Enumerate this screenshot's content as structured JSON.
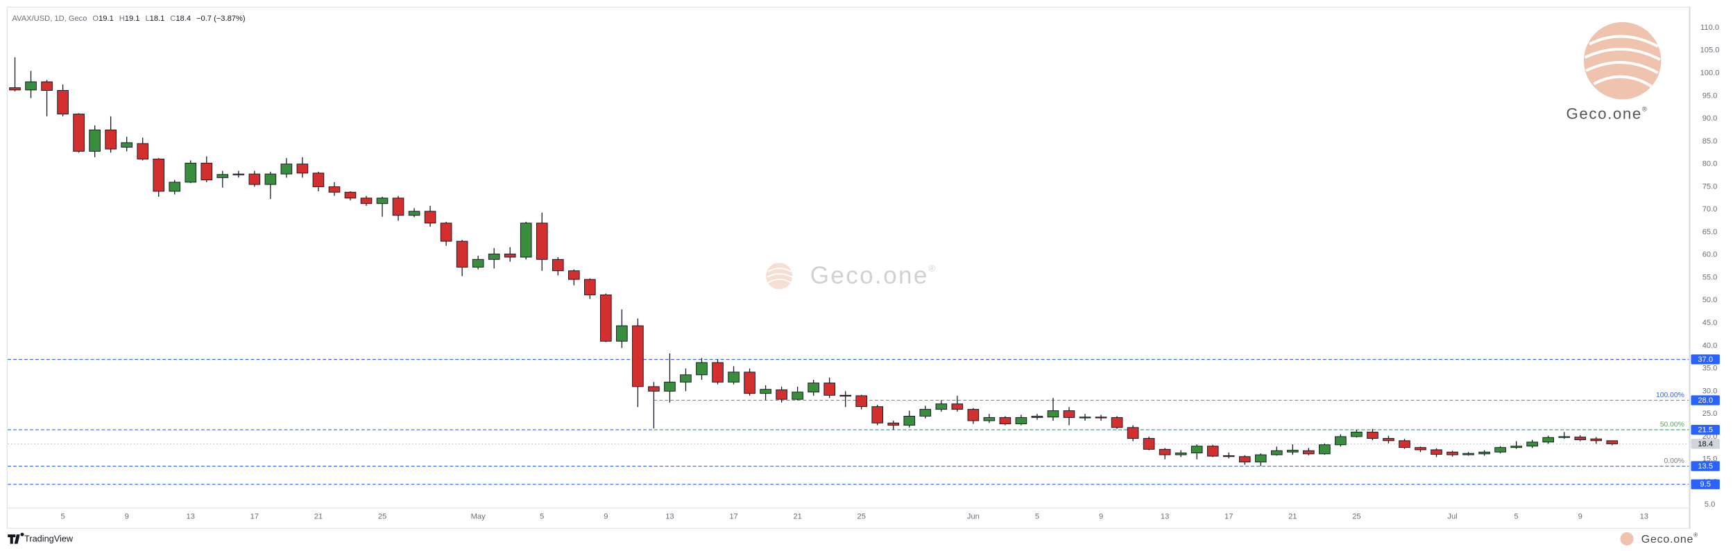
{
  "chart_data": {
    "type": "candlestick",
    "symbol": "AVAX/USD, 1D, Geco",
    "ohlc_labels": [
      "O",
      "H",
      "L",
      "C"
    ],
    "change_text": "−0.7 (−3.87%)",
    "up_color": "#388e3c",
    "down_color": "#d32f2f",
    "grid": false,
    "xlim": [
      -0.45,
      104.8
    ],
    "ylim": [
      4.3,
      114.4
    ],
    "yticks": [
      {
        "value": 5,
        "label": "5.0"
      },
      {
        "value": 10,
        "label": "10.0"
      },
      {
        "value": 15,
        "label": "15.0"
      },
      {
        "value": 20,
        "label": "20.0"
      },
      {
        "value": 25,
        "label": "25.0"
      },
      {
        "value": 30,
        "label": "30.0"
      },
      {
        "value": 35,
        "label": "35.0"
      },
      {
        "value": 40,
        "label": "40.0"
      },
      {
        "value": 45,
        "label": "45.0"
      },
      {
        "value": 50,
        "label": "50.0"
      },
      {
        "value": 55,
        "label": "55.0"
      },
      {
        "value": 60,
        "label": "60.0"
      },
      {
        "value": 65,
        "label": "65.0"
      },
      {
        "value": 70,
        "label": "70.0"
      },
      {
        "value": 75,
        "label": "75.0"
      },
      {
        "value": 80,
        "label": "80.0"
      },
      {
        "value": 85,
        "label": "85.0"
      },
      {
        "value": 90,
        "label": "90.0"
      },
      {
        "value": 95,
        "label": "95.0"
      },
      {
        "value": 100,
        "label": "100.0"
      },
      {
        "value": 105,
        "label": "105.0"
      },
      {
        "value": 110,
        "label": "110.0"
      }
    ],
    "xticks": [
      {
        "value": 3,
        "label": "5"
      },
      {
        "value": 7,
        "label": "9"
      },
      {
        "value": 11,
        "label": "13"
      },
      {
        "value": 15,
        "label": "17"
      },
      {
        "value": 19,
        "label": "21"
      },
      {
        "value": 23,
        "label": "25"
      },
      {
        "value": 29,
        "label": "May"
      },
      {
        "value": 33,
        "label": "5"
      },
      {
        "value": 37,
        "label": "9"
      },
      {
        "value": 41,
        "label": "13"
      },
      {
        "value": 45,
        "label": "17"
      },
      {
        "value": 49,
        "label": "21"
      },
      {
        "value": 53,
        "label": "25"
      },
      {
        "value": 60,
        "label": "Jun"
      },
      {
        "value": 64,
        "label": "5"
      },
      {
        "value": 68,
        "label": "9"
      },
      {
        "value": 72,
        "label": "13"
      },
      {
        "value": 76,
        "label": "17"
      },
      {
        "value": 80,
        "label": "21"
      },
      {
        "value": 84,
        "label": "25"
      },
      {
        "value": 90,
        "label": "Jul"
      },
      {
        "value": 94,
        "label": "5"
      },
      {
        "value": 98,
        "label": "9"
      },
      {
        "value": 102,
        "label": "13"
      }
    ],
    "open": [
      96.8,
      96.3,
      98.1,
      96.2,
      91,
      82.8,
      87.5,
      83.7,
      84.5,
      81.1,
      74,
      76,
      80.2,
      77,
      77.7,
      77.8,
      75.5,
      77.8,
      80,
      78,
      75,
      73.8,
      72.5,
      71.3,
      72.5,
      68.7,
      69.6,
      67,
      63,
      57.3,
      59,
      60.2,
      59.5,
      67,
      59,
      56.5,
      54.6,
      51.2,
      41,
      44.4,
      31,
      30,
      32,
      33.6,
      36.3,
      32,
      34.2,
      29.5,
      30.3,
      28.2,
      29.8,
      31.8,
      29.1,
      29,
      26.6,
      23,
      22.5,
      24.5,
      26,
      27.2,
      26,
      23.5,
      24.2,
      22.8,
      24.2,
      24.3,
      25.7,
      24.2,
      24.3,
      24.2,
      22,
      19.6,
      17.2,
      16,
      16.4,
      17.9,
      15.8,
      15.6,
      14.4,
      16,
      16.6,
      16.9,
      16.2,
      18.2,
      20,
      21,
      19.6,
      19.1,
      17.6,
      17.1,
      16.6,
      16,
      16.2,
      16.6,
      17.6,
      17.9,
      18.8,
      19.8,
      19.9,
      19.5,
      19.1
    ],
    "high": [
      103.5,
      100.5,
      98.5,
      97.5,
      91.2,
      88.5,
      90.5,
      86,
      85.8,
      81.3,
      76.5,
      80.8,
      81.7,
      78.5,
      78.5,
      78.5,
      78.3,
      81.3,
      81.5,
      78.3,
      76,
      74,
      73,
      72.8,
      73,
      70.3,
      70.8,
      67.3,
      63.3,
      59.8,
      61.5,
      61.7,
      67.3,
      69.3,
      59.5,
      56.8,
      54.8,
      51.5,
      48,
      46,
      32,
      38.3,
      35,
      37.3,
      37,
      35.5,
      35,
      31.3,
      31,
      31,
      32.5,
      33,
      30,
      29.2,
      27,
      23.5,
      25.7,
      26.8,
      28,
      29,
      26.3,
      25,
      24.5,
      24.8,
      25,
      28.5,
      26.5,
      25,
      24.8,
      24.5,
      22.5,
      20,
      17.5,
      17,
      18.3,
      18.2,
      16.5,
      15.9,
      16.3,
      17.8,
      18.3,
      17.5,
      18.5,
      20.5,
      21.5,
      21.7,
      20.2,
      19.5,
      17.8,
      17.4,
      16.9,
      16.6,
      17,
      17.9,
      19,
      19.3,
      20.2,
      21,
      20.3,
      19.9,
      19.1
    ],
    "low": [
      96,
      94.5,
      90.5,
      90.5,
      82.5,
      81.5,
      82.5,
      82.8,
      80.8,
      72.8,
      73.3,
      75.8,
      76,
      74.8,
      77,
      75,
      72.3,
      77,
      77,
      74,
      73,
      72,
      70.8,
      68.4,
      67.5,
      68.3,
      66.2,
      62,
      55.3,
      56.8,
      57,
      58.5,
      59,
      56.5,
      55.5,
      53.3,
      50.3,
      40.8,
      39.5,
      26.5,
      21.8,
      27.5,
      30,
      32.5,
      31.5,
      31.5,
      29,
      28,
      27.5,
      28,
      29,
      28.5,
      26.5,
      26,
      22.5,
      21.5,
      22,
      24,
      25.5,
      25.5,
      22.8,
      23,
      22.5,
      22.5,
      23.7,
      23.5,
      22.5,
      23.5,
      23.5,
      21.7,
      19,
      17,
      15,
      15.5,
      15,
      15.5,
      15.2,
      13.8,
      13.5,
      15.8,
      16,
      15.9,
      16,
      17.8,
      19.8,
      19.2,
      18.5,
      17.3,
      16.6,
      15.5,
      15.6,
      15.8,
      15.8,
      16.3,
      17.3,
      17.5,
      18.4,
      19.5,
      19,
      18.4,
      18.1
    ],
    "close": [
      96.3,
      98.1,
      96.2,
      91,
      82.8,
      87.5,
      83.3,
      84.7,
      81.1,
      74,
      76,
      80.2,
      76.5,
      77.7,
      77.8,
      75.5,
      77.8,
      80,
      78,
      75,
      73.8,
      72.5,
      71.3,
      72.5,
      68.7,
      69.6,
      67,
      63,
      57.3,
      59,
      60.2,
      59.5,
      67,
      59,
      56.5,
      54.6,
      51.2,
      41,
      44.4,
      31,
      30,
      32,
      33.6,
      36.3,
      32,
      34.2,
      29.5,
      30.4,
      28.2,
      29.8,
      31.8,
      29.1,
      29,
      26.6,
      23,
      22.5,
      24.5,
      26,
      27.2,
      26,
      23.5,
      24.2,
      22.8,
      24.2,
      24.5,
      25.7,
      24.2,
      24.3,
      24.2,
      22,
      19.6,
      17.2,
      16,
      16.4,
      17.9,
      15.7,
      15.6,
      14.4,
      16,
      16.9,
      17,
      16.2,
      18.2,
      20,
      21,
      19.6,
      19.1,
      17.6,
      17.1,
      16.1,
      16,
      16.3,
      16.6,
      17.6,
      17.9,
      18.8,
      19.8,
      20,
      19.3,
      19.1,
      18.4
    ],
    "levels": [
      {
        "value": 37,
        "label": "37.0",
        "color": "#2962ff",
        "line": "dashed"
      },
      {
        "value": 28,
        "label": "28.0",
        "color": "#2962ff",
        "line": "none"
      },
      {
        "value": 21.5,
        "label": "21.5",
        "color": "#2962ff",
        "line": "dashed"
      },
      {
        "value": 18.4,
        "label": "18.4",
        "color": "#d1d4dc",
        "line": "dotted"
      },
      {
        "value": 13.5,
        "label": "13.5",
        "color": "#2962ff",
        "line": "dashed"
      },
      {
        "value": 9.5,
        "label": "9.5",
        "color": "#2962ff",
        "line": "dashed"
      }
    ],
    "fib": {
      "start": 40,
      "levels": [
        {
          "value": 28,
          "label": "100.00%",
          "color": "#2962ff"
        },
        {
          "value": 21.5,
          "label": "50.00%",
          "color": "#4caf50"
        },
        {
          "value": 13.5,
          "label": "0.00%",
          "color": "#787b86"
        }
      ]
    },
    "watermark": "Geco.one",
    "watermark_mark": "®",
    "footer_left": "TradingView",
    "footer_right": "Geco.one"
  }
}
